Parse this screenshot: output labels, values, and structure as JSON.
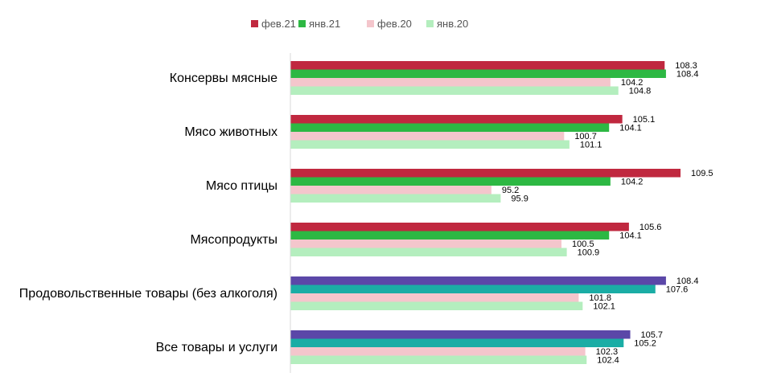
{
  "chart_data": {
    "type": "bar",
    "orientation": "horizontal",
    "title": "",
    "xlabel": "",
    "ylabel": "",
    "grid": false,
    "legend_position": "top",
    "legend": [
      {
        "name": "фев.21",
        "color": "#C0283F"
      },
      {
        "name": "янв.21",
        "color": "#2DB843"
      },
      {
        "name": "фев.20",
        "color": "#F4C6CC"
      },
      {
        "name": "янв.20",
        "color": "#B4EEBE"
      }
    ],
    "categories": [
      "Консервы мясные",
      "Мясо животных",
      "Мясо птицы",
      "Мясопродукты",
      "Продовольственные товары (без алкоголя)",
      "Все товары и услуги"
    ],
    "series": [
      {
        "name": "фев.21",
        "values": [
          108.3,
          105.1,
          109.5,
          105.6,
          108.4,
          105.7
        ],
        "colors": [
          "#C0283F",
          "#C0283F",
          "#C0283F",
          "#C0283F",
          "#5B47A8",
          "#5B47A8"
        ]
      },
      {
        "name": "янв.21",
        "values": [
          108.4,
          104.1,
          104.2,
          104.1,
          107.6,
          105.2
        ],
        "colors": [
          "#2DB843",
          "#2DB843",
          "#2DB843",
          "#2DB843",
          "#1AADA5",
          "#1AADA5"
        ]
      },
      {
        "name": "фев.20",
        "values": [
          104.2,
          100.7,
          95.2,
          100.5,
          101.8,
          102.3
        ],
        "colors": [
          "#F4C6CC",
          "#F4C6CC",
          "#F4C6CC",
          "#F4C6CC",
          "#F4C6CC",
          "#F4C6CC"
        ]
      },
      {
        "name": "янв.20",
        "values": [
          104.8,
          101.1,
          95.9,
          100.9,
          102.1,
          102.4
        ],
        "colors": [
          "#B4EEBE",
          "#B4EEBE",
          "#B4EEBE",
          "#B4EEBE",
          "#B4EEBE",
          "#B4EEBE"
        ]
      }
    ],
    "xlim": [
      80,
      111
    ]
  }
}
